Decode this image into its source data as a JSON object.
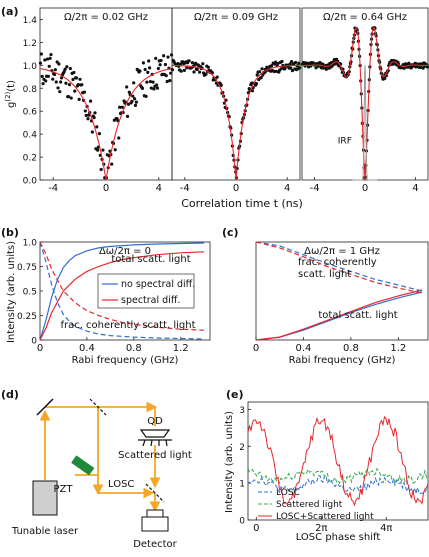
{
  "panel_labels": {
    "a": "(a)",
    "b": "(b)",
    "c": "(c)",
    "d": "(d)",
    "e": "(e)"
  },
  "colors": {
    "red": "#e8262b",
    "blue": "#2f6fd0",
    "teal": "#2a8a86",
    "green": "#34a853",
    "orange": "#f5a623",
    "pzt": "#1f8a3a",
    "gray": "#999999"
  },
  "chart_data": [
    {
      "type": "scatter",
      "id": "a1",
      "title": "Ω/2π = 0.02 GHz",
      "ylabel": "g(2)(t)",
      "xlim": [
        -5,
        5
      ],
      "ylim": [
        0,
        1.5
      ],
      "xticks": [
        -4,
        0,
        4
      ],
      "xtick_labels": [
        "-4",
        "0",
        "4"
      ],
      "yticks": [
        0,
        0.2,
        0.4,
        0.6,
        0.8,
        1.0,
        1.2,
        1.4
      ],
      "ytick_labels": [
        "0.0",
        "0.2",
        "0.4",
        "0.6",
        "0.8",
        "1.0",
        "1.2",
        "1.4"
      ],
      "fit_model": {
        "kind": "antibunch",
        "tau": 1.4
      },
      "points": {
        "noise": 0.16,
        "count": 150,
        "seed": 11
      }
    },
    {
      "type": "scatter",
      "id": "a2",
      "title": "Ω/2π = 0.09 GHz",
      "xlim": [
        -5,
        5
      ],
      "ylim": [
        0,
        1.5
      ],
      "xticks": [
        -4,
        0,
        4
      ],
      "xtick_labels": [
        "-4",
        "0",
        "4"
      ],
      "fit_model": {
        "kind": "antibunch",
        "tau": 0.75
      },
      "points": {
        "noise": 0.05,
        "count": 160,
        "seed": 23
      }
    },
    {
      "type": "scatter",
      "id": "a3",
      "title": "Ω/2π = 0.64 GHz",
      "xlim": [
        -5,
        5
      ],
      "ylim": [
        0,
        1.5
      ],
      "xticks": [
        -4,
        0,
        4
      ],
      "xtick_labels": [
        "-4",
        "0",
        "4"
      ],
      "fit_model": {
        "kind": "rabi",
        "omega": 4.0,
        "tau": 1.0
      },
      "irf_label": "IRF",
      "points": {
        "noise": 0.025,
        "count": 220,
        "seed": 37
      }
    },
    {
      "type": "line",
      "id": "b",
      "title": "Δω/2π = 0",
      "xlabel": "Rabi frequency (GHz)",
      "ylabel": "Intensity (arb. units)",
      "xlim": [
        0,
        1.45
      ],
      "ylim": [
        0,
        1.0
      ],
      "xticks": [
        0,
        0.4,
        0.8,
        1.2
      ],
      "xtick_labels": [
        "0",
        "0.4",
        "0.8",
        "1.2"
      ],
      "yticks": [
        0,
        0.25,
        0.5,
        0.75,
        1.0
      ],
      "ytick_labels": [
        "0",
        "0.25",
        "0.5",
        "0.75",
        "1.0"
      ],
      "series": [
        {
          "name": "no spectral diff.",
          "color": "blue",
          "style": "solid",
          "x": [
            0,
            0.05,
            0.1,
            0.15,
            0.2,
            0.25,
            0.3,
            0.4,
            0.5,
            0.6,
            0.8,
            1.0,
            1.2,
            1.4
          ],
          "y": [
            0,
            0.2,
            0.44,
            0.62,
            0.74,
            0.81,
            0.86,
            0.91,
            0.94,
            0.955,
            0.97,
            0.98,
            0.985,
            0.99
          ]
        },
        {
          "name": "",
          "color": "blue",
          "style": "dashed",
          "x": [
            0,
            0.05,
            0.1,
            0.15,
            0.2,
            0.25,
            0.3,
            0.4,
            0.5,
            0.6,
            0.8,
            1.0,
            1.2,
            1.4
          ],
          "y": [
            1,
            0.8,
            0.56,
            0.38,
            0.26,
            0.19,
            0.14,
            0.09,
            0.06,
            0.045,
            0.03,
            0.02,
            0.015,
            0.01
          ]
        },
        {
          "name": "spectral diff.",
          "color": "red",
          "style": "solid",
          "x": [
            0,
            0.05,
            0.1,
            0.2,
            0.3,
            0.4,
            0.5,
            0.6,
            0.7,
            0.8,
            1.0,
            1.2,
            1.4
          ],
          "y": [
            0,
            0.12,
            0.28,
            0.5,
            0.62,
            0.7,
            0.75,
            0.79,
            0.82,
            0.84,
            0.87,
            0.89,
            0.9
          ]
        },
        {
          "name": "",
          "color": "red",
          "style": "dashed",
          "x": [
            0,
            0.05,
            0.1,
            0.2,
            0.3,
            0.4,
            0.5,
            0.6,
            0.7,
            0.8,
            1.0,
            1.2,
            1.4
          ],
          "y": [
            1,
            0.88,
            0.72,
            0.5,
            0.38,
            0.3,
            0.25,
            0.21,
            0.18,
            0.16,
            0.13,
            0.11,
            0.1
          ]
        }
      ],
      "annotations": [
        "total scatt. light",
        "frac. coherently scatt. light"
      ]
    },
    {
      "type": "line",
      "id": "c",
      "title": "Δω/2π = 1 GHz",
      "xlabel": "Rabi frequency (GHz)",
      "xlim": [
        0,
        1.45
      ],
      "ylim": [
        0,
        1.0
      ],
      "xticks": [
        0,
        0.4,
        0.8,
        1.2
      ],
      "xtick_labels": [
        "0",
        "0.4",
        "0.8",
        "1.2"
      ],
      "series": [
        {
          "name": "",
          "color": "blue",
          "style": "solid",
          "x": [
            0,
            0.2,
            0.4,
            0.6,
            0.8,
            1.0,
            1.2,
            1.4
          ],
          "y": [
            0,
            0.03,
            0.1,
            0.19,
            0.28,
            0.36,
            0.43,
            0.49
          ]
        },
        {
          "name": "",
          "color": "red",
          "style": "solid",
          "x": [
            0,
            0.2,
            0.4,
            0.6,
            0.8,
            1.0,
            1.2,
            1.4
          ],
          "y": [
            0,
            0.03,
            0.11,
            0.2,
            0.29,
            0.38,
            0.45,
            0.51
          ]
        },
        {
          "name": "",
          "color": "blue",
          "style": "dashed",
          "x": [
            0,
            0.2,
            0.4,
            0.6,
            0.8,
            1.0,
            1.2,
            1.4
          ],
          "y": [
            1,
            0.96,
            0.87,
            0.78,
            0.7,
            0.62,
            0.56,
            0.5
          ]
        },
        {
          "name": "",
          "color": "red",
          "style": "dashed",
          "x": [
            0,
            0.2,
            0.4,
            0.6,
            0.8,
            1.0,
            1.2,
            1.4
          ],
          "y": [
            1,
            0.94,
            0.85,
            0.75,
            0.67,
            0.59,
            0.53,
            0.48
          ]
        }
      ],
      "annotations": [
        "frac. coherently scatt. light",
        "total scatt. light"
      ]
    },
    {
      "type": "line",
      "id": "e",
      "xlabel": "LOSC phase shift",
      "ylabel": "Intensity (arb. units)",
      "xlim": [
        -0.8,
        16.6
      ],
      "ylim": [
        0,
        3.2
      ],
      "xticks": [
        0,
        6.283,
        12.566
      ],
      "xtick_labels": [
        "0",
        "2π",
        "4π"
      ],
      "yticks": [
        0,
        1,
        2,
        3
      ],
      "series": [
        {
          "name": "LOSC",
          "color": "blue",
          "style": "dashed",
          "base": 0.95,
          "amp": 0.15
        },
        {
          "name": "Scattered light",
          "color": "green",
          "style": "dashed",
          "base": 1.2,
          "amp": 0.12
        },
        {
          "name": "LOSC+Scattered light",
          "color": "red",
          "style": "solid",
          "base": 1.6,
          "amp": 1.1
        }
      ]
    }
  ],
  "axis_a": {
    "xlabel": "Correlation time t (ns)"
  },
  "diagram_d": {
    "labels": {
      "qd": "QD",
      "scattered": "Scattered light",
      "pzt": "PZT",
      "losc": "LOSC",
      "laser": "Tunable laser",
      "detector": "Detector"
    }
  }
}
